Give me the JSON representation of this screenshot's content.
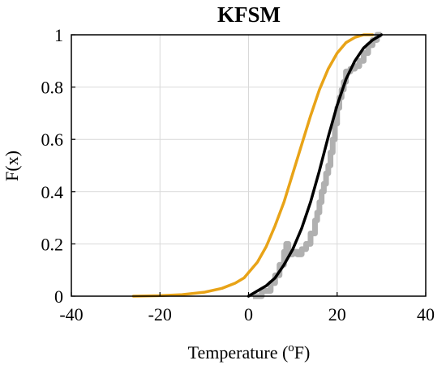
{
  "chart_data": {
    "type": "line",
    "title": "KFSM",
    "xlabel": "Temperature (",
    "xlabel_sup": "o",
    "xlabel_tail": "F)",
    "ylabel": "F(x)",
    "xlim": [
      -40,
      40
    ],
    "ylim": [
      0,
      1
    ],
    "xticks": [
      "-40",
      "-20",
      "0",
      "20",
      "40"
    ],
    "yticks": [
      "0",
      "0.2",
      "0.4",
      "0.6",
      "0.8",
      "1"
    ],
    "grid": true,
    "legend": "none",
    "series": [
      {
        "color": "#b0b0b0",
        "style": "step",
        "x": [
          1,
          3,
          5,
          6,
          7,
          8,
          8.5,
          9,
          10,
          11,
          12,
          13,
          14,
          15,
          15.5,
          16,
          16.5,
          17,
          17.5,
          18,
          18.5,
          19,
          19.5,
          20,
          20.5,
          21,
          21.5,
          22,
          23,
          24,
          25,
          26,
          27,
          28,
          29,
          30
        ],
        "y": [
          0,
          0.02,
          0.05,
          0.08,
          0.12,
          0.17,
          0.2,
          0.16,
          0.17,
          0.16,
          0.18,
          0.2,
          0.24,
          0.29,
          0.32,
          0.36,
          0.4,
          0.43,
          0.47,
          0.5,
          0.55,
          0.6,
          0.66,
          0.72,
          0.76,
          0.79,
          0.82,
          0.86,
          0.87,
          0.88,
          0.9,
          0.93,
          0.96,
          0.98,
          1.0,
          1.0
        ]
      },
      {
        "color": "#e8a317",
        "style": "line",
        "x": [
          -26,
          -20,
          -15,
          -10,
          -6,
          -3,
          -1,
          0,
          2,
          4,
          6,
          8,
          10,
          12,
          14,
          16,
          18,
          20,
          22,
          24,
          26,
          28
        ],
        "y": [
          0,
          0.002,
          0.006,
          0.015,
          0.03,
          0.05,
          0.07,
          0.09,
          0.13,
          0.19,
          0.27,
          0.36,
          0.47,
          0.58,
          0.69,
          0.79,
          0.87,
          0.93,
          0.97,
          0.99,
          1.0,
          1.0
        ]
      },
      {
        "color": "#000000",
        "style": "line",
        "x": [
          0,
          2,
          4,
          6,
          8,
          10,
          12,
          14,
          16,
          18,
          20,
          22,
          24,
          26,
          28,
          30
        ],
        "y": [
          0,
          0.02,
          0.04,
          0.07,
          0.12,
          0.18,
          0.26,
          0.36,
          0.48,
          0.61,
          0.73,
          0.83,
          0.9,
          0.95,
          0.98,
          1.0
        ]
      }
    ]
  }
}
